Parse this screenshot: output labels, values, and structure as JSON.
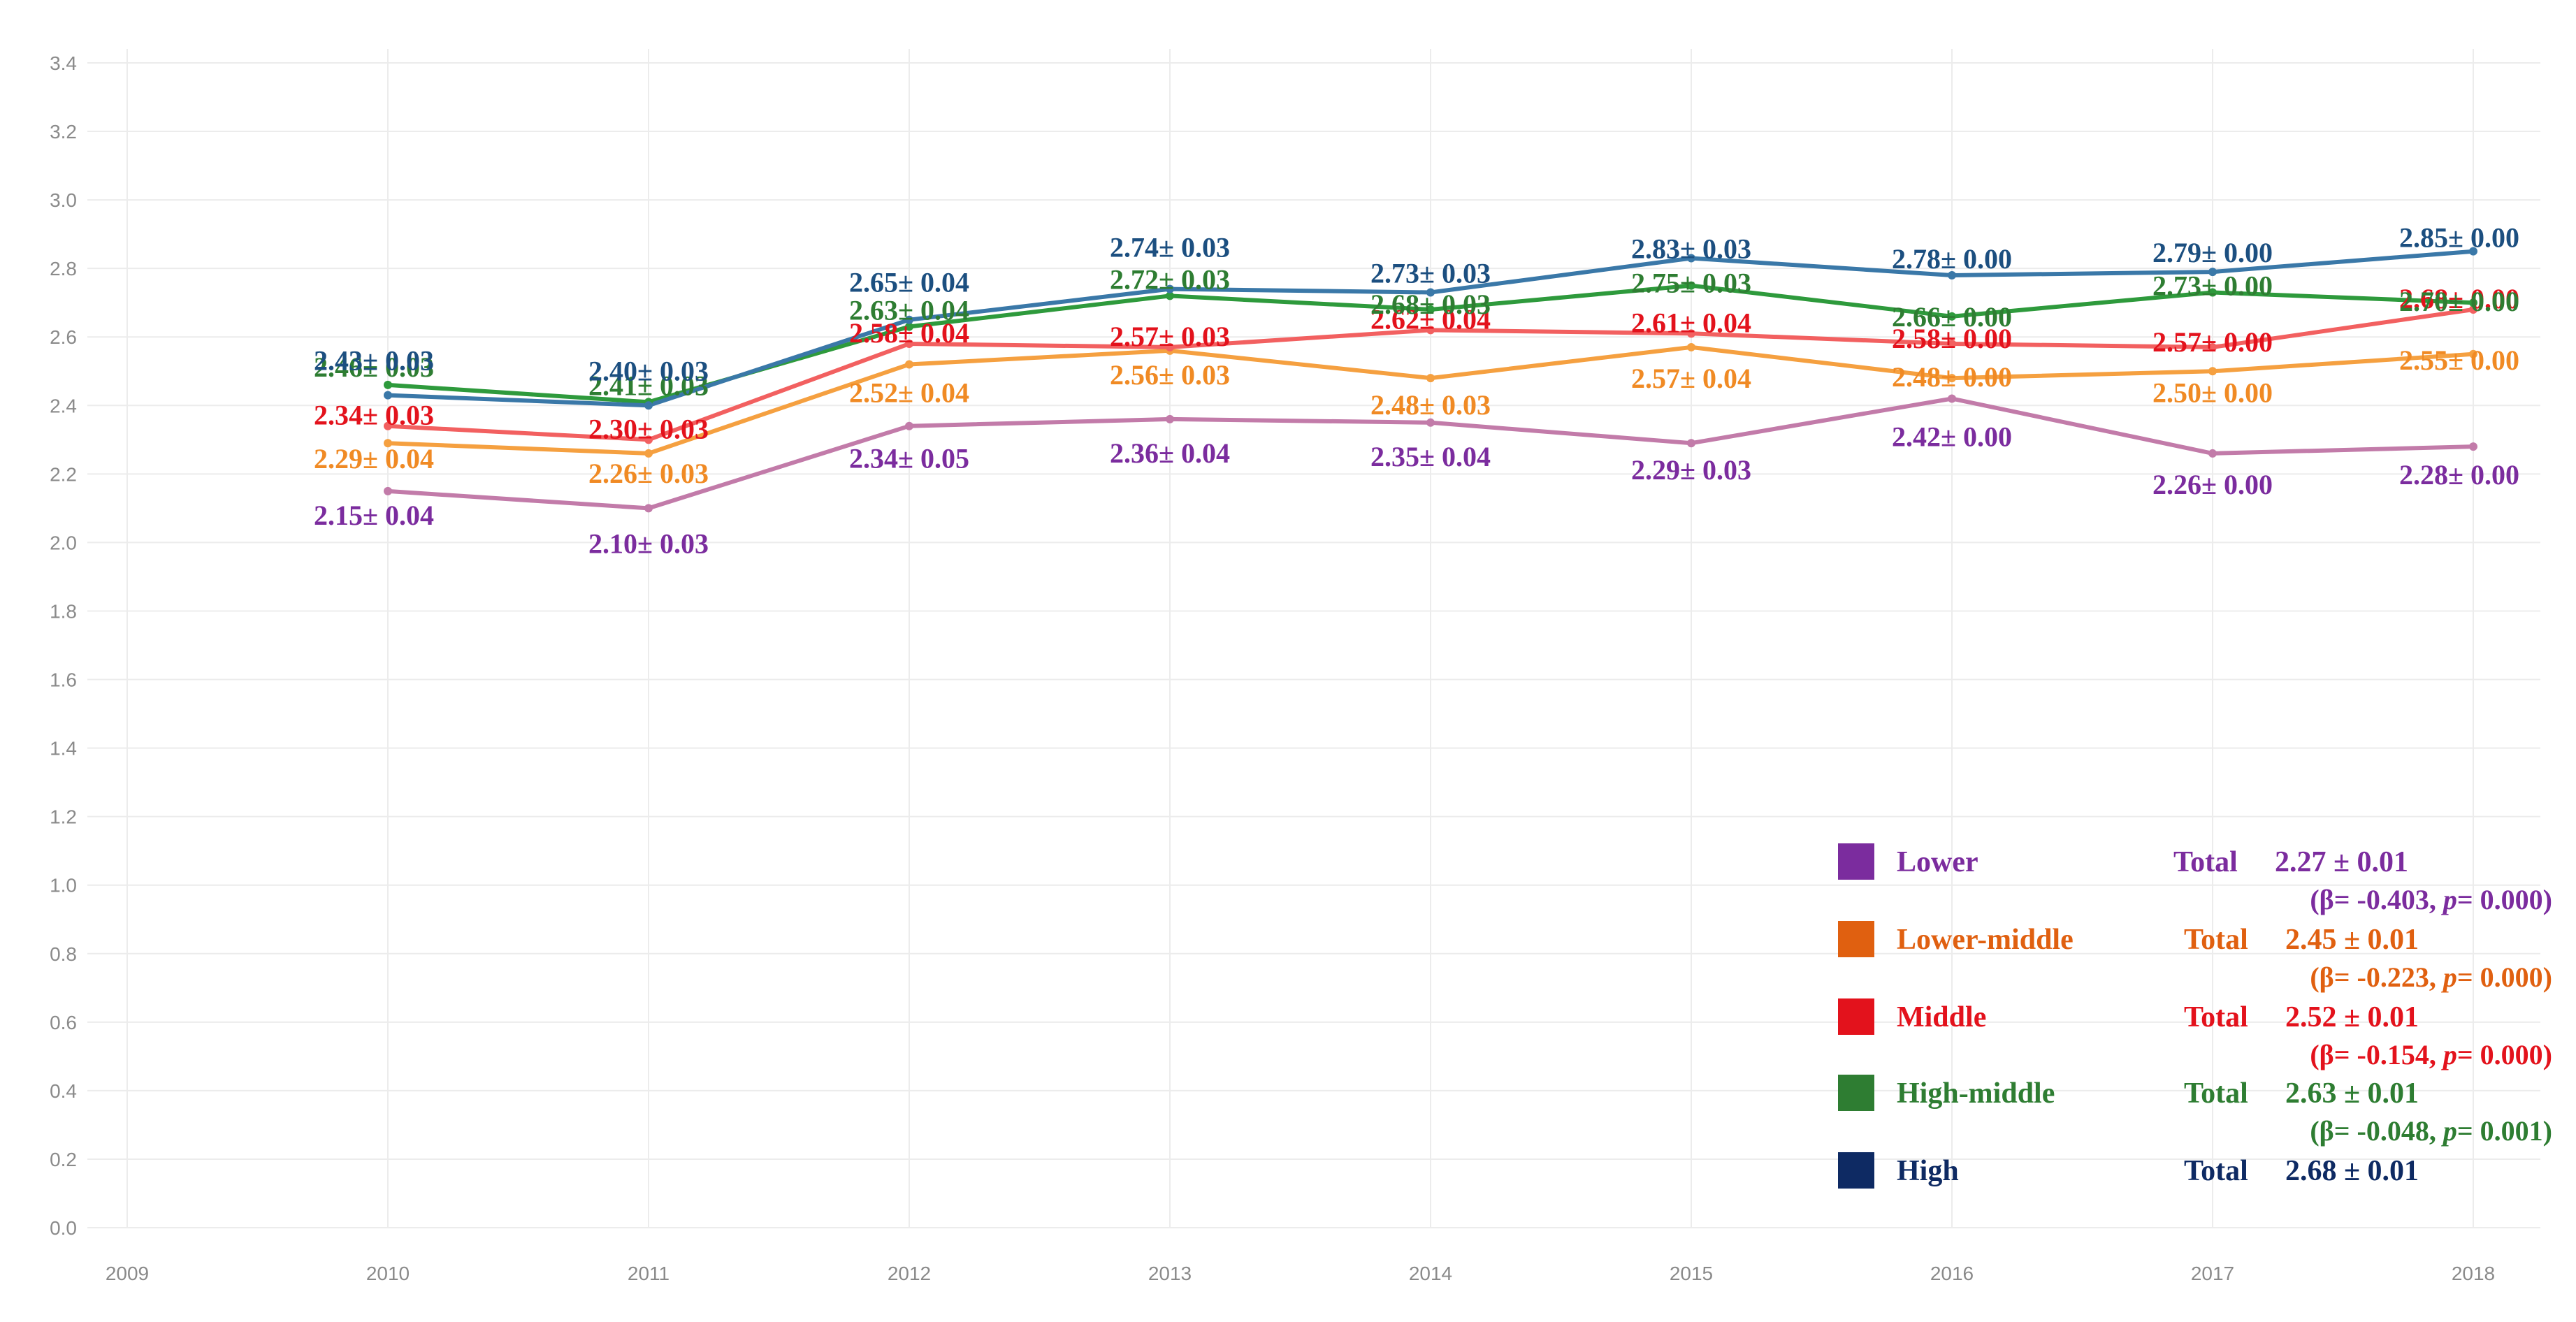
{
  "chart_data": {
    "type": "line",
    "title": "",
    "xlabel": "",
    "ylabel": "",
    "x_ticks": [
      "2009",
      "2010",
      "2011",
      "2012",
      "2013",
      "2014",
      "2015",
      "2016",
      "2017",
      "2018"
    ],
    "x": [
      2010,
      2011,
      2012,
      2013,
      2014,
      2015,
      2016,
      2017,
      2018
    ],
    "ylim": [
      0,
      3.4
    ],
    "y_ticks": [
      "0.0",
      "0.2",
      "0.4",
      "0.6",
      "0.8",
      "1.0",
      "1.2",
      "1.4",
      "1.6",
      "1.8",
      "2.0",
      "2.2",
      "2.4",
      "2.6",
      "2.8",
      "3.0",
      "3.2",
      "3.4"
    ],
    "grid": true,
    "legend_position": "bottom-right",
    "series": [
      {
        "name": "Lower",
        "line_color": "#c27ba9",
        "label_color": "#7b2c9e",
        "legend_color": "#7b2c9e",
        "values": [
          2.15,
          2.1,
          2.34,
          2.36,
          2.35,
          2.29,
          2.42,
          2.26,
          2.28
        ],
        "labels": [
          "2.15± 0.04",
          "2.10± 0.03",
          "2.34± 0.05",
          "2.36± 0.04",
          "2.35± 0.04",
          "2.29± 0.03",
          "2.42± 0.00",
          "2.26± 0.00",
          "2.28± 0.00"
        ],
        "total_word": "Total",
        "total": "2.27 ± 0.01",
        "stat_prefix": "(β= -0.403, ",
        "stat_p": "p",
        "stat_suffix": "= 0.000)"
      },
      {
        "name": "Lower-middle",
        "line_color": "#f5a040",
        "label_color": "#f08a24",
        "legend_color": "#e06010",
        "values": [
          2.29,
          2.26,
          2.52,
          2.56,
          2.48,
          2.57,
          2.48,
          2.5,
          2.55
        ],
        "labels": [
          "2.29± 0.04",
          "2.26± 0.03",
          "2.52± 0.04",
          "2.56± 0.03",
          "2.48± 0.03",
          "2.57± 0.04",
          "2.48± 0.00",
          "2.50± 0.00",
          "2.55± 0.00"
        ],
        "total_word": "Total",
        "total": "2.45 ± 0.01",
        "stat_prefix": "(β= -0.223, ",
        "stat_p": "p",
        "stat_suffix": "= 0.000)"
      },
      {
        "name": "Middle",
        "line_color": "#f26060",
        "label_color": "#e3121c",
        "legend_color": "#e3121c",
        "values": [
          2.34,
          2.3,
          2.58,
          2.57,
          2.62,
          2.61,
          2.58,
          2.57,
          2.68
        ],
        "labels": [
          "2.34± 0.03",
          "2.30± 0.03",
          "2.58± 0.04",
          "2.57± 0.03",
          "2.62± 0.04",
          "2.61± 0.04",
          "2.58± 0.00",
          "2.57± 0.00",
          "2.68± 0.00"
        ],
        "total_word": "Total",
        "total": "2.52 ± 0.01",
        "stat_prefix": "(β= -0.154, ",
        "stat_p": "p",
        "stat_suffix": "= 0.000)"
      },
      {
        "name": "High-middle",
        "line_color": "#2e9a3c",
        "label_color": "#2e7d32",
        "legend_color": "#2e7d32",
        "values": [
          2.46,
          2.41,
          2.63,
          2.72,
          2.68,
          2.75,
          2.66,
          2.73,
          2.7
        ],
        "labels": [
          "2.46± 0.03",
          "2.41± 0.03",
          "2.63± 0.04",
          "2.72± 0.03",
          "2.68± 0.03",
          "2.75± 0.03",
          "2.66± 0.00",
          "2.73± 0.00",
          "2.70± 0.00"
        ],
        "total_word": "Total",
        "total": "2.63 ± 0.01",
        "stat_prefix": "(β= -0.048, ",
        "stat_p": "p",
        "stat_suffix": "= 0.001)"
      },
      {
        "name": "High",
        "line_color": "#3a78a8",
        "label_color": "#1c4f80",
        "legend_color": "#0e2a63",
        "values": [
          2.43,
          2.4,
          2.65,
          2.74,
          2.73,
          2.83,
          2.78,
          2.79,
          2.85
        ],
        "labels": [
          "2.43± 0.03",
          "2.40± 0.03",
          "2.65± 0.04",
          "2.74± 0.03",
          "2.73± 0.03",
          "2.83± 0.03",
          "2.78± 0.00",
          "2.79± 0.00",
          "2.85± 0.00"
        ],
        "total_word": "Total",
        "total": "2.68 ± 0.01",
        "stat_prefix": "",
        "stat_p": "",
        "stat_suffix": ""
      }
    ]
  }
}
